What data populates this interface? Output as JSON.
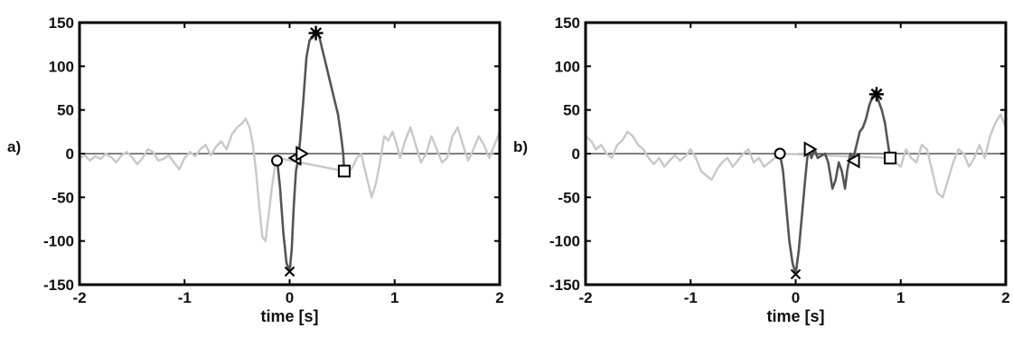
{
  "chart_data": [
    {
      "type": "line",
      "panel_label": "a)",
      "xlabel": "time [s]",
      "ylabel": "",
      "xlim": [
        -2,
        2
      ],
      "ylim": [
        -150,
        150
      ],
      "xticks": [
        -2,
        -1,
        0,
        1,
        2
      ],
      "yticks": [
        150,
        100,
        50,
        0,
        -50,
        -100,
        -150
      ],
      "zero_line": true,
      "series": [
        {
          "role": "background",
          "color": "#c8c8c8",
          "points": [
            [
              -2.0,
              -5
            ],
            [
              -1.95,
              -2
            ],
            [
              -1.9,
              -8
            ],
            [
              -1.85,
              -3
            ],
            [
              -1.8,
              -6
            ],
            [
              -1.75,
              0
            ],
            [
              -1.7,
              -4
            ],
            [
              -1.65,
              -10
            ],
            [
              -1.6,
              -2
            ],
            [
              -1.55,
              2
            ],
            [
              -1.5,
              -4
            ],
            [
              -1.45,
              -12
            ],
            [
              -1.4,
              -5
            ],
            [
              -1.35,
              5
            ],
            [
              -1.3,
              2
            ],
            [
              -1.25,
              -8
            ],
            [
              -1.2,
              -6
            ],
            [
              -1.15,
              -2
            ],
            [
              -1.1,
              -10
            ],
            [
              -1.05,
              -18
            ],
            [
              -1.0,
              -5
            ],
            [
              -0.95,
              2
            ],
            [
              -0.9,
              -3
            ],
            [
              -0.85,
              5
            ],
            [
              -0.8,
              10
            ],
            [
              -0.75,
              -2
            ],
            [
              -0.7,
              8
            ],
            [
              -0.65,
              14
            ],
            [
              -0.6,
              5
            ],
            [
              -0.55,
              22
            ],
            [
              -0.5,
              30
            ],
            [
              -0.45,
              35
            ],
            [
              -0.42,
              40
            ],
            [
              -0.38,
              30
            ],
            [
              -0.35,
              10
            ],
            [
              -0.32,
              -20
            ],
            [
              -0.29,
              -60
            ],
            [
              -0.26,
              -95
            ],
            [
              -0.23,
              -100
            ],
            [
              -0.2,
              -70
            ],
            [
              -0.17,
              -40
            ],
            [
              -0.14,
              -15
            ],
            [
              -0.12,
              -5
            ],
            [
              0.52,
              -20
            ],
            [
              0.56,
              -22
            ],
            [
              0.6,
              -15
            ],
            [
              0.64,
              -5
            ],
            [
              0.68,
              0
            ],
            [
              0.7,
              -10
            ],
            [
              0.74,
              -30
            ],
            [
              0.78,
              -50
            ],
            [
              0.82,
              -35
            ],
            [
              0.86,
              -10
            ],
            [
              0.9,
              20
            ],
            [
              0.94,
              15
            ],
            [
              0.98,
              25
            ],
            [
              1.02,
              10
            ],
            [
              1.05,
              -5
            ],
            [
              1.1,
              15
            ],
            [
              1.15,
              30
            ],
            [
              1.2,
              10
            ],
            [
              1.25,
              -10
            ],
            [
              1.3,
              0
            ],
            [
              1.35,
              20
            ],
            [
              1.4,
              5
            ],
            [
              1.45,
              -10
            ],
            [
              1.5,
              -5
            ],
            [
              1.55,
              20
            ],
            [
              1.6,
              30
            ],
            [
              1.65,
              10
            ],
            [
              1.7,
              -8
            ],
            [
              1.75,
              5
            ],
            [
              1.8,
              20
            ],
            [
              1.85,
              10
            ],
            [
              1.9,
              -5
            ],
            [
              1.95,
              10
            ],
            [
              2.0,
              25
            ]
          ]
        },
        {
          "role": "highlight",
          "color": "#555555",
          "points": [
            [
              -0.12,
              -5
            ],
            [
              -0.09,
              -40
            ],
            [
              -0.06,
              -90
            ],
            [
              -0.03,
              -125
            ],
            [
              0.0,
              -135
            ],
            [
              0.02,
              -110
            ],
            [
              0.04,
              -60
            ],
            [
              0.06,
              -20
            ],
            [
              0.08,
              -8
            ],
            [
              0.1,
              15
            ],
            [
              0.13,
              60
            ],
            [
              0.16,
              110
            ],
            [
              0.19,
              130
            ],
            [
              0.22,
              133
            ],
            [
              0.25,
              140
            ],
            [
              0.28,
              135
            ],
            [
              0.31,
              120
            ],
            [
              0.35,
              100
            ],
            [
              0.39,
              80
            ],
            [
              0.43,
              60
            ],
            [
              0.46,
              45
            ],
            [
              0.49,
              20
            ],
            [
              0.51,
              0
            ],
            [
              0.52,
              -20
            ]
          ]
        }
      ],
      "markers": [
        {
          "shape": "circle",
          "x": -0.12,
          "y": -8
        },
        {
          "shape": "cross",
          "x": 0.0,
          "y": -135
        },
        {
          "shape": "triangle-left",
          "x": 0.06,
          "y": -5
        },
        {
          "shape": "triangle-right",
          "x": 0.11,
          "y": 0
        },
        {
          "shape": "asterisk",
          "x": 0.25,
          "y": 138
        },
        {
          "shape": "square",
          "x": 0.52,
          "y": -20
        }
      ]
    },
    {
      "type": "line",
      "panel_label": "b)",
      "xlabel": "time [s]",
      "ylabel": "",
      "xlim": [
        -2,
        2
      ],
      "ylim": [
        -150,
        150
      ],
      "xticks": [
        -2,
        -1,
        0,
        1,
        2
      ],
      "yticks": [
        150,
        100,
        50,
        0,
        -50,
        -100,
        -150
      ],
      "zero_line": true,
      "series": [
        {
          "role": "background",
          "color": "#c8c8c8",
          "points": [
            [
              -2.0,
              20
            ],
            [
              -1.95,
              15
            ],
            [
              -1.9,
              5
            ],
            [
              -1.85,
              10
            ],
            [
              -1.8,
              0
            ],
            [
              -1.75,
              -5
            ],
            [
              -1.7,
              10
            ],
            [
              -1.65,
              15
            ],
            [
              -1.6,
              25
            ],
            [
              -1.55,
              20
            ],
            [
              -1.5,
              10
            ],
            [
              -1.45,
              5
            ],
            [
              -1.4,
              -5
            ],
            [
              -1.35,
              -12
            ],
            [
              -1.3,
              -5
            ],
            [
              -1.25,
              -15
            ],
            [
              -1.2,
              -8
            ],
            [
              -1.15,
              -2
            ],
            [
              -1.1,
              -8
            ],
            [
              -1.05,
              -3
            ],
            [
              -1.0,
              5
            ],
            [
              -0.95,
              -5
            ],
            [
              -0.9,
              -20
            ],
            [
              -0.85,
              -25
            ],
            [
              -0.8,
              -30
            ],
            [
              -0.75,
              -18
            ],
            [
              -0.7,
              -10
            ],
            [
              -0.65,
              -5
            ],
            [
              -0.6,
              -15
            ],
            [
              -0.55,
              -8
            ],
            [
              -0.5,
              0
            ],
            [
              -0.45,
              5
            ],
            [
              -0.4,
              -10
            ],
            [
              -0.35,
              -5
            ],
            [
              -0.3,
              -15
            ],
            [
              -0.25,
              -10
            ],
            [
              -0.2,
              -5
            ],
            [
              -0.15,
              0
            ],
            [
              0.9,
              -5
            ],
            [
              0.95,
              -10
            ],
            [
              1.0,
              -15
            ],
            [
              1.05,
              5
            ],
            [
              1.1,
              -5
            ],
            [
              1.15,
              -10
            ],
            [
              1.2,
              10
            ],
            [
              1.25,
              5
            ],
            [
              1.3,
              -20
            ],
            [
              1.35,
              -45
            ],
            [
              1.4,
              -50
            ],
            [
              1.45,
              -30
            ],
            [
              1.5,
              -10
            ],
            [
              1.55,
              5
            ],
            [
              1.6,
              0
            ],
            [
              1.65,
              -15
            ],
            [
              1.7,
              -5
            ],
            [
              1.75,
              10
            ],
            [
              1.8,
              -5
            ],
            [
              1.85,
              20
            ],
            [
              1.9,
              35
            ],
            [
              1.95,
              45
            ],
            [
              2.0,
              30
            ]
          ]
        },
        {
          "role": "highlight",
          "color": "#555555",
          "points": [
            [
              -0.15,
              0
            ],
            [
              -0.12,
              -20
            ],
            [
              -0.09,
              -60
            ],
            [
              -0.06,
              -100
            ],
            [
              -0.03,
              -125
            ],
            [
              0.0,
              -138
            ],
            [
              0.03,
              -110
            ],
            [
              0.06,
              -70
            ],
            [
              0.09,
              -30
            ],
            [
              0.11,
              -5
            ],
            [
              0.13,
              5
            ],
            [
              0.15,
              -5
            ],
            [
              0.18,
              5
            ],
            [
              0.21,
              -5
            ],
            [
              0.25,
              -2
            ],
            [
              0.28,
              0
            ],
            [
              0.31,
              -10
            ],
            [
              0.33,
              -25
            ],
            [
              0.35,
              -40
            ],
            [
              0.38,
              -30
            ],
            [
              0.41,
              -10
            ],
            [
              0.44,
              -20
            ],
            [
              0.47,
              -40
            ],
            [
              0.49,
              -20
            ],
            [
              0.52,
              0
            ],
            [
              0.55,
              -5
            ],
            [
              0.58,
              10
            ],
            [
              0.61,
              25
            ],
            [
              0.64,
              30
            ],
            [
              0.67,
              40
            ],
            [
              0.7,
              55
            ],
            [
              0.73,
              65
            ],
            [
              0.76,
              72
            ],
            [
              0.79,
              60
            ],
            [
              0.82,
              50
            ],
            [
              0.85,
              35
            ],
            [
              0.88,
              10
            ],
            [
              0.9,
              -5
            ]
          ]
        }
      ],
      "markers": [
        {
          "shape": "circle",
          "x": -0.15,
          "y": 0
        },
        {
          "shape": "cross",
          "x": 0.0,
          "y": -138
        },
        {
          "shape": "triangle-right",
          "x": 0.13,
          "y": 5
        },
        {
          "shape": "triangle-left",
          "x": 0.56,
          "y": -8
        },
        {
          "shape": "asterisk",
          "x": 0.77,
          "y": 68
        },
        {
          "shape": "square",
          "x": 0.9,
          "y": -5
        }
      ]
    }
  ]
}
